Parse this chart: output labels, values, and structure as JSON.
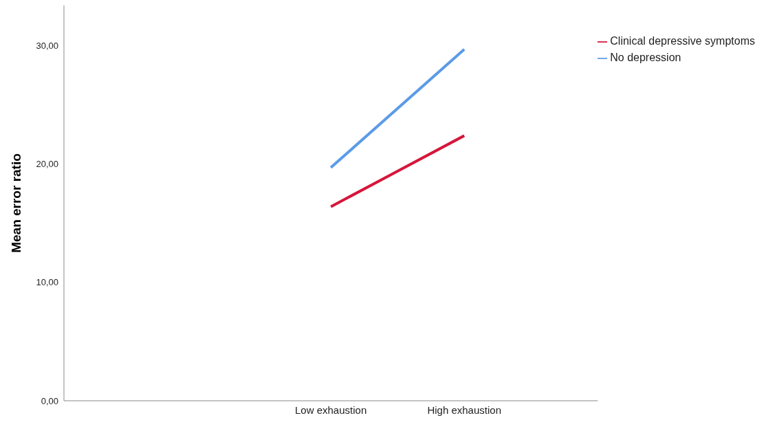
{
  "chart_data": {
    "type": "line",
    "ylabel": "Mean error ratio",
    "categories": [
      null,
      null,
      "Low exhaustion",
      "High exhaustion",
      null
    ],
    "series": [
      {
        "name": "No depression",
        "color": "#5b9be8",
        "values": [
          null,
          null,
          19.7,
          29.7,
          null
        ]
      },
      {
        "name": "Clinical depressive symptoms",
        "color": "#d6163a",
        "values": [
          null,
          null,
          16.4,
          22.4,
          null
        ]
      }
    ],
    "ylim": [
      0,
      33.4
    ],
    "yticks": [
      {
        "value": 0,
        "label": "0,00"
      },
      {
        "value": 10,
        "label": "10,00"
      },
      {
        "value": 20,
        "label": "20,00"
      },
      {
        "value": 30,
        "label": "30,00"
      }
    ],
    "grid": false,
    "legend": "top right",
    "marker": "none",
    "line_style": "solid"
  }
}
